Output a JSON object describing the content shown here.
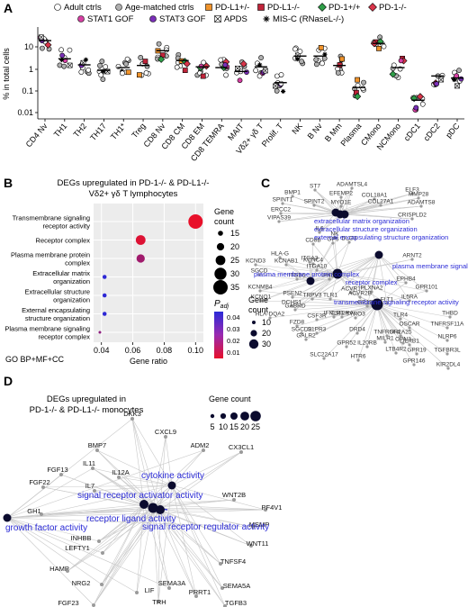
{
  "panels": {
    "a": "A",
    "b": "B",
    "c": "C",
    "d": "D"
  },
  "panelA": {
    "legend": [
      {
        "label": "Adult ctrls",
        "shape": "circle",
        "fill": "#ffffff"
      },
      {
        "label": "Age-matched ctrls",
        "shape": "circle",
        "fill": "#b0b0b0"
      },
      {
        "label": "PD-L1+/-",
        "shape": "square",
        "fill": "#f0932b"
      },
      {
        "label": "PD-L1-/-",
        "shape": "square",
        "fill": "#c0243a"
      },
      {
        "label": "PD-1+/+",
        "shape": "diamond",
        "fill": "#2e9e48"
      },
      {
        "label": "PD-1-/-",
        "shape": "diamond",
        "fill": "#d8354a"
      },
      {
        "label": "STAT1 GOF",
        "shape": "circle",
        "fill": "#d63fa3"
      },
      {
        "label": "STAT3 GOF",
        "shape": "circle",
        "fill": "#7a2fb8"
      },
      {
        "label": "APDS",
        "shape": "xsquare",
        "fill": "#ffffff"
      },
      {
        "label": "MIS-C (RNaseL-/-)",
        "shape": "asterisk",
        "fill": "#000000"
      }
    ],
    "ylabel": "% in total cells",
    "yticks": [
      "10",
      "1",
      "0.1",
      "0.01"
    ],
    "categories": [
      "CD4 Nv",
      "TH1",
      "TH2",
      "TH17",
      "TH1*",
      "Treg",
      "CD8 Nv",
      "CD8 CM",
      "CD8 EM",
      "CD8 TEMRA",
      "MAIT",
      "Vδ2+ γδ T",
      "Prolif. T",
      "NK",
      "B Nv",
      "B Mm",
      "Plasma",
      "CMono",
      "NCMono",
      "cDC1",
      "cDC2",
      "pDC"
    ],
    "medians": [
      20,
      3,
      1.6,
      0.9,
      1.2,
      1.5,
      7,
      2.5,
      1.3,
      1.2,
      0.8,
      1.3,
      0.25,
      4,
      4,
      1.5,
      0.15,
      15,
      1.2,
      0.04,
      0.5,
      0.4
    ]
  },
  "panelB": {
    "title_line1": "DEGs upregulated in PD-1-/- & PD-L1-/-",
    "title_line2": "Vδ2+ γδ T lymphocytes",
    "terms": [
      {
        "label": "Transmembrane signaling receptor activity",
        "ratio": 0.1,
        "count": 35,
        "padj": 0.001
      },
      {
        "label": "Receptor complex",
        "ratio": 0.065,
        "count": 25,
        "padj": 0.004
      },
      {
        "label": "Plasma membrane protein complex",
        "ratio": 0.065,
        "count": 22,
        "padj": 0.02
      },
      {
        "label": "Extracellular matrix organization",
        "ratio": 0.042,
        "count": 13,
        "padj": 0.05
      },
      {
        "label": "Extracellular structure organization",
        "ratio": 0.042,
        "count": 13,
        "padj": 0.05
      },
      {
        "label": "External encapsulating structure organization",
        "ratio": 0.042,
        "count": 13,
        "padj": 0.05
      },
      {
        "label": "Plasma membrane signaling receptor complex",
        "ratio": 0.039,
        "count": 10,
        "padj": 0.025
      }
    ],
    "xlabel": "Gene ratio",
    "xticks": [
      "0.04",
      "0.06",
      "0.08",
      "0.10"
    ],
    "footer": "GO BP+MF+CC",
    "size_legend_title": "Gene\ncount",
    "size_legend": [
      "15",
      "20",
      "25",
      "30",
      "35"
    ],
    "color_legend_title": "P",
    "color_legend_sub": "adj",
    "color_legend_ticks": [
      "0.04",
      "0.03",
      "0.02",
      "0.01"
    ]
  },
  "panelC": {
    "terms": [
      "extracellular matrix organization",
      "extracellular structure organization",
      "external encapsulating structure organization",
      "plasma membrane signaling receptor complex",
      "plasma membrane protein complex",
      "receptor complex",
      "transmembrane signaling receptor activity"
    ],
    "genes": [
      "ADAMTSL4",
      "ST7",
      "ELF3",
      "BMP1",
      "EFEMP2",
      "COL18A1",
      "MMP28",
      "SPINT1",
      "SPINT2",
      "COL27A1",
      "ADAMTS8",
      "ERCC2",
      "MYO1E",
      "VIPAS39",
      "CRISPLD2",
      "IL6",
      "NK",
      "CD8B",
      "GP5",
      "DLG3",
      "HLA-G",
      "KCND3",
      "KCNAB1",
      "KCNC4",
      "ITGA3",
      "ITGA10",
      "ARNT2",
      "SGCD",
      "ITGB5",
      "IFNL1",
      "EPHB4",
      "PLXNA2",
      "GPR101",
      "KCNMB4",
      "KCNQ1",
      "PSEN2",
      "DCHS1",
      "TRPV3",
      "ACVR1",
      "TLR1",
      "GABRD",
      "ACVR2B",
      "GP1BB",
      "IL5RA",
      "FLT1",
      "CSF3R",
      "IFNLR1",
      "CSF2RA",
      "TYRO3",
      "TLR4",
      "THBD",
      "HLA-DQA2",
      "FZD8",
      "OSCAR",
      "TNFRSF11A",
      "OR2A25",
      "NLRP6",
      "SGCD2",
      "LILRB1",
      "TGFBR3L",
      "S1PR3",
      "DRD4",
      "MILR1",
      "OPN3",
      "GALR2",
      "GPR52",
      "LTB4R2",
      "GPR19",
      "KIR2DL4",
      "SLC22A17",
      "HTR6",
      "GPR146",
      "IL20RB",
      "TNFRSF4"
    ],
    "legend_title": "Gene\ncount",
    "legend": [
      "10",
      "20",
      "30"
    ]
  },
  "panelD": {
    "title_line1": "DEGs upregulated in",
    "title_line2": "PD-1-/- & PD-L1-/- monocytes",
    "terms": [
      "cytokine activity",
      "signal receptor activator activity",
      "receptor ligand activity",
      "signal receptor regulator activity",
      "growth factor activity"
    ],
    "genes": [
      "DKK3",
      "CXCL9",
      "BMP7",
      "ADM2",
      "CX3CL1",
      "IL11",
      "FGF13",
      "IL12A",
      "FGF22",
      "WNT2B",
      "PF4V1",
      "IL7",
      "MSMP",
      "GH1",
      "WNT11",
      "INHBB",
      "TNFSF4",
      "HAMP",
      "LEFTY1",
      "SEMA5A",
      "NRG2",
      "LIF",
      "TGFB3",
      "TRH",
      "SEMA3A",
      "FGF23",
      "PRRT1"
    ],
    "legend_title": "Gene count",
    "legend": [
      "5",
      "10",
      "15",
      "20",
      "25"
    ]
  }
}
